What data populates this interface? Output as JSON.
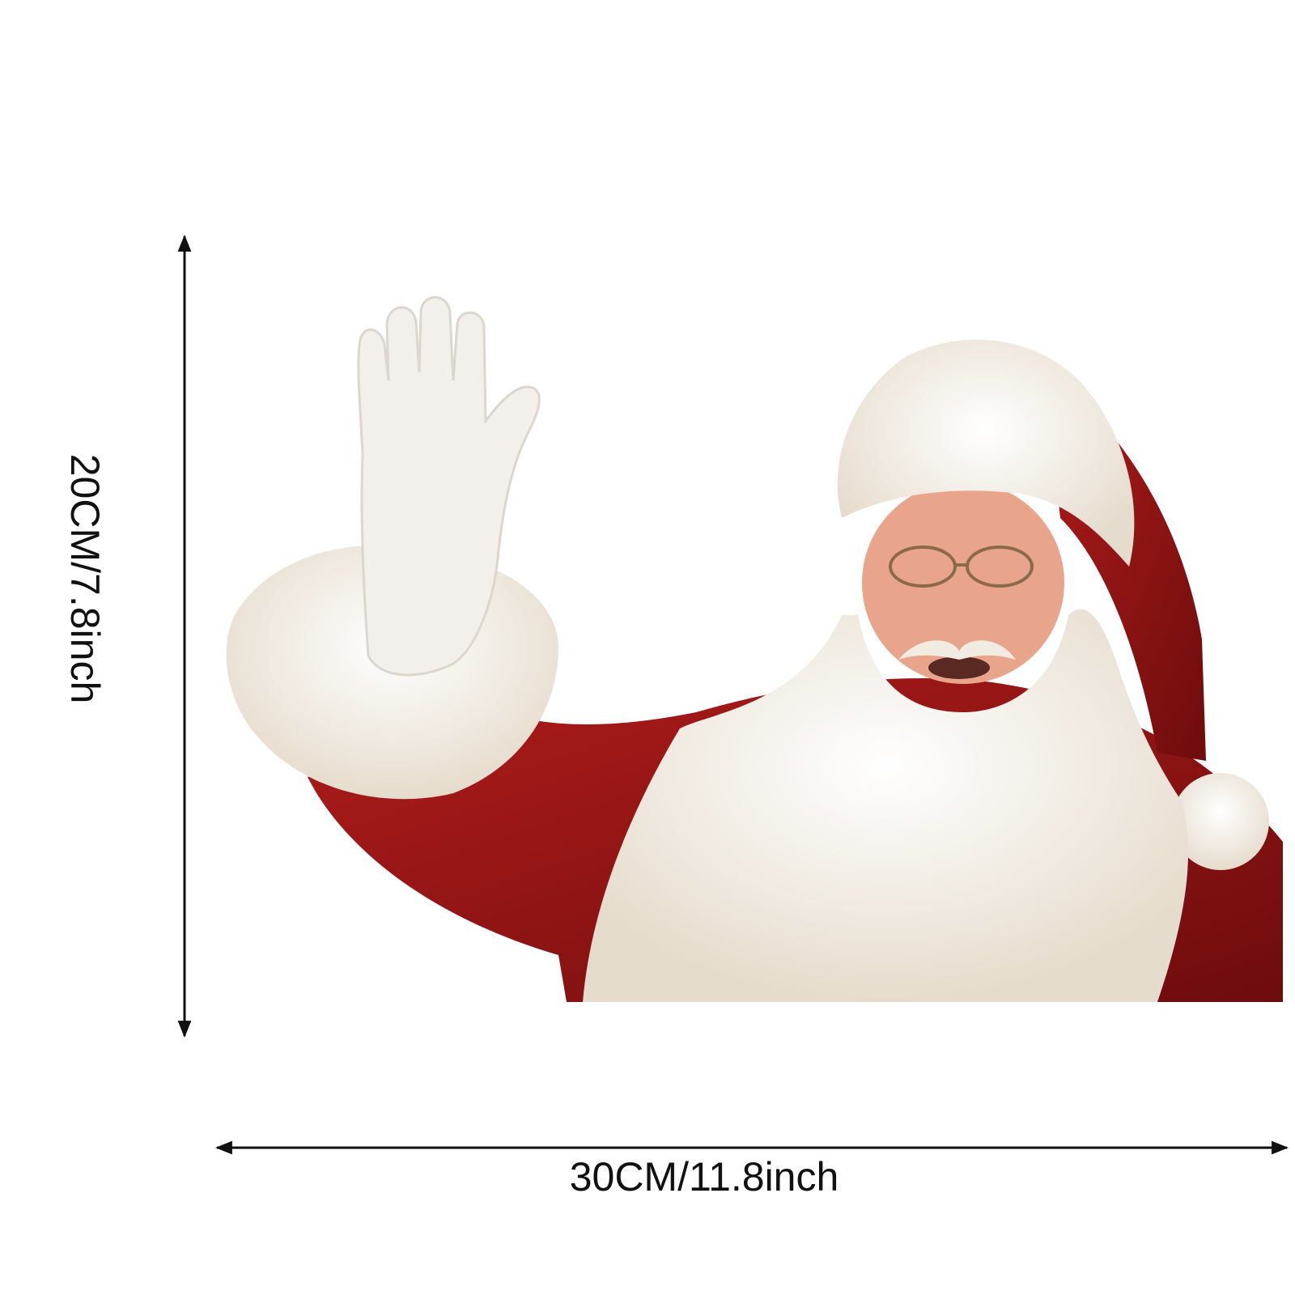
{
  "dimensions": {
    "height_label": "20CM/7.8inch",
    "width_label": "30CM/11.8inch"
  },
  "colors": {
    "suit_red": "#8e1414",
    "fur_white": "#f6efe6",
    "arrow": "#111111"
  }
}
